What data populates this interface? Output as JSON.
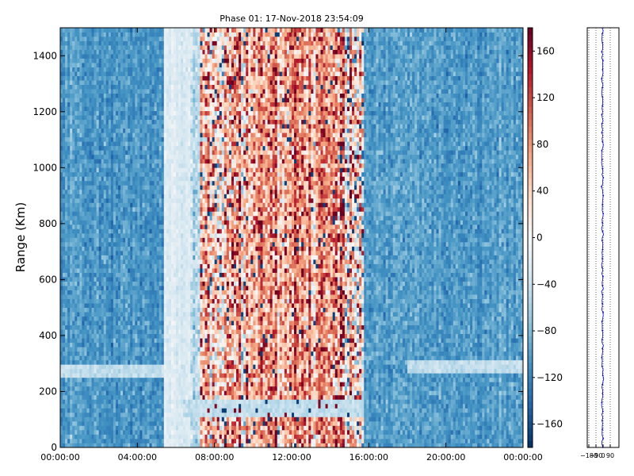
{
  "figure": {
    "title": "Phase 01: 17-Nov-2018 23:54:09"
  },
  "chart_data": [
    {
      "type": "heatmap",
      "title": "Phase 01: 17-Nov-2018 23:54:09",
      "xlabel": "",
      "ylabel": "Range (Km)",
      "x_ticks": [
        "00:00:00",
        "04:00:00",
        "08:00:00",
        "12:00:00",
        "16:00:00",
        "20:00:00",
        "00:00:00"
      ],
      "x_range_hours": [
        0,
        24
      ],
      "y_ticks": [
        0,
        200,
        400,
        600,
        800,
        1000,
        1200,
        1400
      ],
      "ylim": [
        0,
        1500
      ],
      "colormap": "RdBu_r",
      "color_range": [
        -180,
        180
      ],
      "colorbar_ticks": [
        160,
        120,
        80,
        40,
        0,
        -40,
        -80,
        -120,
        -160
      ],
      "bands": [
        {
          "from_hour": 0.0,
          "to_hour": 5.4,
          "mean_phase": -105,
          "spread": 22
        },
        {
          "from_hour": 5.4,
          "to_hour": 6.7,
          "mean_phase": -25,
          "spread": 12
        },
        {
          "from_hour": 6.7,
          "to_hour": 7.3,
          "mean_phase": -55,
          "spread": 30
        },
        {
          "from_hour": 7.3,
          "to_hour": 9.8,
          "mean_phase": 40,
          "spread": 95
        },
        {
          "from_hour": 9.8,
          "to_hour": 14.3,
          "mean_phase": 75,
          "spread": 70
        },
        {
          "from_hour": 14.3,
          "to_hour": 15.8,
          "mean_phase": 35,
          "spread": 110
        },
        {
          "from_hour": 15.8,
          "to_hour": 24.0,
          "mean_phase": -100,
          "spread": 22
        }
      ],
      "lighter_layers": [
        {
          "from_hour": 0.0,
          "to_hour": 5.4,
          "range_km": [
            250,
            300
          ]
        },
        {
          "from_hour": 6.4,
          "to_hour": 15.8,
          "range_km": [
            115,
            175
          ]
        },
        {
          "from_hour": 18.0,
          "to_hour": 24.0,
          "range_km": [
            260,
            320
          ]
        }
      ]
    },
    {
      "type": "line",
      "title": "",
      "xlabel": "",
      "ylabel": "",
      "x_ticks": [
        "-180",
        "-90",
        "0",
        "90"
      ],
      "xlim": [
        -200,
        200
      ],
      "ylim": [
        0,
        1500
      ],
      "vertical_reference_lines": [
        -180,
        -90,
        0,
        90
      ],
      "profile_mean": -8,
      "profile_spread": 6,
      "line_color": "#0000cc"
    }
  ]
}
